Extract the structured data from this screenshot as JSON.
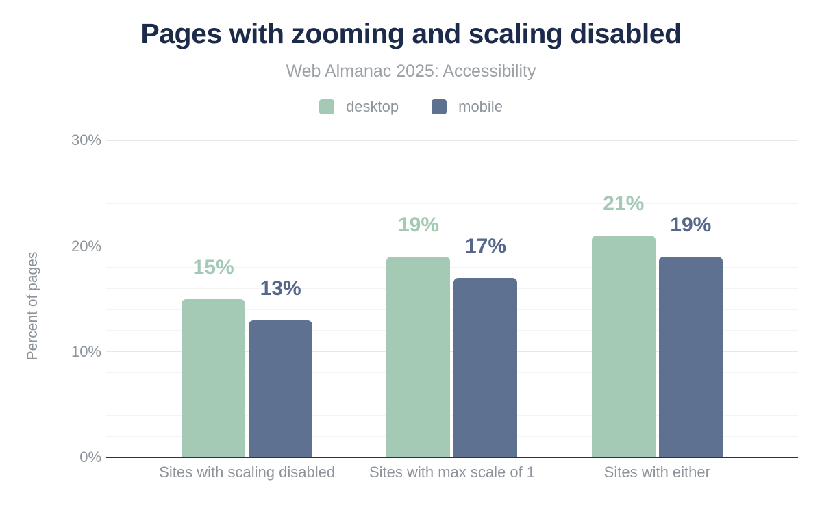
{
  "figure": {
    "title": "Pages with zooming and scaling disabled",
    "subtitle": "Web Almanac 2025: Accessibility"
  },
  "colors": {
    "background": "#ffffff",
    "title_text": "#1c2b4a",
    "subtitle_text": "#9aa0a6",
    "axis_text": "#8e949c",
    "grid_minor": "#f4f4f4",
    "grid_major": "#e7e7e7",
    "axis_line": "#333333",
    "desktop": "#a4c9b5",
    "mobile": "#5f7190",
    "desktop_value_label": "#a4c9b5",
    "mobile_value_label": "#55688a"
  },
  "chart_data": {
    "type": "bar",
    "title": "Pages with zooming and scaling disabled",
    "subtitle": "Web Almanac 2025: Accessibility",
    "categories": [
      "Sites with scaling disabled",
      "Sites with max scale of 1",
      "Sites with either"
    ],
    "series": [
      {
        "name": "desktop",
        "color": "#a4c9b5",
        "label_color": "#a4c9b5",
        "values": [
          15,
          19,
          21
        ],
        "value_labels": [
          "15%",
          "19%",
          "21%"
        ]
      },
      {
        "name": "mobile",
        "color": "#5f7190",
        "label_color": "#55688a",
        "values": [
          13,
          17,
          19
        ],
        "value_labels": [
          "13%",
          "17%",
          "19%"
        ]
      }
    ],
    "xlabel": "",
    "ylabel": "Percent of pages",
    "ylim": [
      0,
      31
    ],
    "yticks": [
      {
        "value": 0,
        "label": "0%"
      },
      {
        "value": 10,
        "label": "10%"
      },
      {
        "value": 20,
        "label": "20%"
      },
      {
        "value": 30,
        "label": "30%"
      }
    ],
    "grid": {
      "minor_step": 2,
      "major_step": 10,
      "max": 30,
      "enabled": true
    },
    "legend_position": "top"
  }
}
